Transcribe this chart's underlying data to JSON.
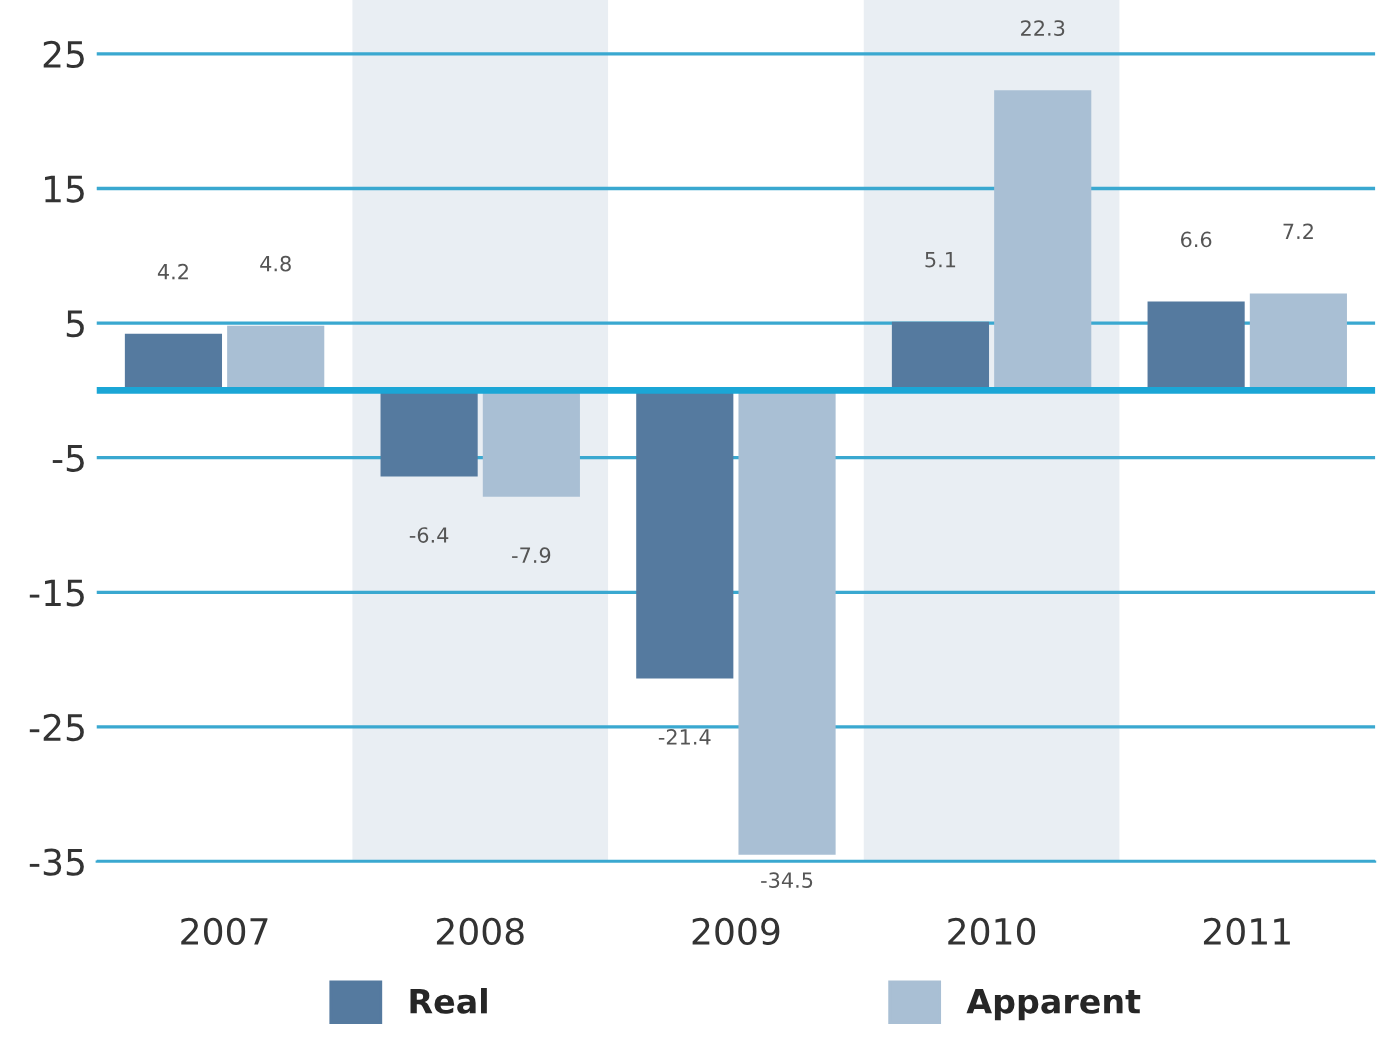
{
  "chart_data": {
    "type": "bar",
    "categories": [
      "2007",
      "2008",
      "2009",
      "2010",
      "2011"
    ],
    "series": [
      {
        "name": "Real",
        "color": "#557a9f",
        "values": [
          4.2,
          -6.4,
          -21.4,
          5.1,
          6.6
        ]
      },
      {
        "name": "Apparent",
        "color": "#a9bfd4",
        "values": [
          4.8,
          -7.9,
          -34.5,
          22.3,
          7.2
        ]
      }
    ],
    "ylim": [
      -35,
      29
    ],
    "yticks": [
      -35,
      -25,
      -15,
      -5,
      5,
      15,
      25
    ],
    "grid": "y",
    "legend": "bottom",
    "data_labels": true,
    "ref_lines": [
      {
        "axis": "y",
        "value": 0,
        "color": "#1ba6d6"
      }
    ],
    "bands": [
      {
        "axis": "x",
        "from": "2008",
        "to": "2008",
        "color": "#e9eef3"
      },
      {
        "axis": "x",
        "from": "2010",
        "to": "2010",
        "color": "#e9eef3"
      }
    ]
  }
}
